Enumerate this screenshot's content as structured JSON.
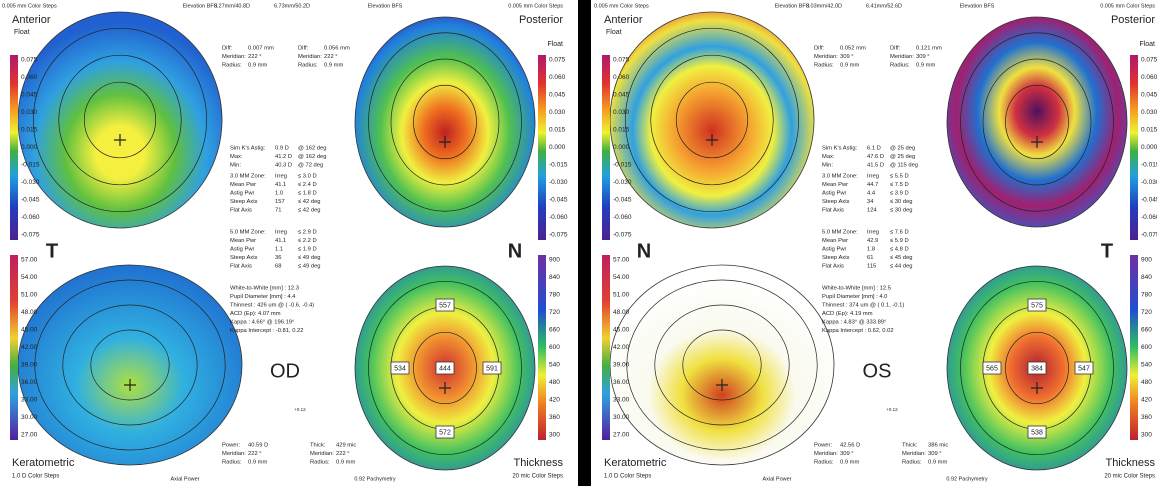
{
  "panels": [
    {
      "header": [
        "0.005 mm Color Steps",
        "Elevation BFS",
        "8.27mm/40.8D",
        "6.73mm/50.2D",
        "Elevation BFS",
        "0.005 mm Color Steps"
      ],
      "titles": {
        "anterior": "Anterior",
        "float_left": "Float",
        "posterior": "Posterior",
        "float_right": "Float",
        "keratometric": "Keratometric",
        "keratometric_steps": "1.0 D Color Steps",
        "axial": "Axial Power",
        "pachymetry": "0.92 Pachymetry",
        "thickness": "Thickness",
        "thickness_steps": "20 mic Color Steps",
        "offset": "+0.12"
      },
      "sides": [
        "T",
        "N"
      ],
      "eye": "OD",
      "elevation_scale": [
        "0.075",
        "0.060",
        "0.045",
        "0.030",
        "0.015",
        "0.000",
        "-0.015",
        "-0.030",
        "-0.045",
        "-0.060",
        "-0.075"
      ],
      "keratometric_scale": [
        "57.00",
        "54.00",
        "51.00",
        "48.00",
        "45.00",
        "42.00",
        "39.00",
        "36.00",
        "33.00",
        "30.00",
        "27.00"
      ],
      "thickness_scale": [
        "900",
        "840",
        "780",
        "720",
        "660",
        "600",
        "540",
        "480",
        "420",
        "360",
        "300"
      ],
      "diff_anterior": [
        [
          "Diff:",
          "0.007 mm"
        ],
        [
          "Meridian:",
          "222 °"
        ],
        [
          "Radius:",
          "0.9 mm"
        ]
      ],
      "diff_posterior": [
        [
          "Diff:",
          "0.056 mm"
        ],
        [
          "Meridian:",
          "222 °"
        ],
        [
          "Radius:",
          "0.9 mm"
        ]
      ],
      "sim_k": [
        [
          "Sim K's Astig:",
          "0.9 D",
          "@ 162 deg"
        ],
        [
          "Max:",
          "41.2 D",
          "@ 162 deg"
        ],
        [
          "Min:",
          "40.3 D",
          "@ 72 deg"
        ]
      ],
      "zone_3": [
        [
          "3.0 MM Zone:",
          "Irreg",
          "≤ 3.0 D"
        ],
        [
          "Mean Pwr",
          "41.1",
          "≤ 2.4 D"
        ],
        [
          "Astig Pwr",
          "1.0",
          "≤ 1.8 D"
        ],
        [
          "Steep Axis",
          "157",
          "≤ 42 deg"
        ],
        [
          "Flat Axis",
          "71",
          "≤ 42 deg"
        ]
      ],
      "zone_5": [
        [
          "5.0 MM Zone:",
          "Irreg",
          "≤ 2.9 D"
        ],
        [
          "Mean Pwr",
          "41.1",
          "≤ 2.2 D"
        ],
        [
          "Astig Pwr",
          "1.1",
          "≤ 1.9 D"
        ],
        [
          "Steep Axis",
          "36",
          "≤ 49 deg"
        ],
        [
          "Flat Axis",
          "68",
          "≤ 49 deg"
        ]
      ],
      "measurements": [
        "White-to-White [mm] : 12.3",
        "Pupil Diameter [mm] : 4.4",
        "Thinnest : 426 um @ ( -0.6, -0.4)",
        "ACD (Ep): 4.07 mm",
        "Kappa : 4.66° @ 196.19°",
        "Kappa Intercept : -0.81, 0.22"
      ],
      "thickness_points": [
        "557",
        "534",
        "444",
        "591",
        "572"
      ],
      "power": [
        [
          "Power:",
          "40.59 D"
        ],
        [
          "Meridian:",
          "222 °"
        ],
        [
          "Radius:",
          "0.9 mm"
        ]
      ],
      "thick": [
        [
          "Thick:",
          "429 mic"
        ],
        [
          "Meridian:",
          "222 °"
        ],
        [
          "Radius:",
          "0.9 mm"
        ]
      ]
    },
    {
      "header": [
        "0.005 mm Color Steps",
        "Elevation BFS",
        "8.03mm/42.0D",
        "6.41mm/52.6D",
        "Elevation BFS",
        "0.005 mm Color Steps"
      ],
      "titles": {
        "anterior": "Anterior",
        "float_left": "Float",
        "posterior": "Posterior",
        "float_right": "Float",
        "keratometric": "Keratometric",
        "keratometric_steps": "1.0 D Color Steps",
        "axial": "Axial Power",
        "pachymetry": "0.92 Pachymetry",
        "thickness": "Thickness",
        "thickness_steps": "20 mic Color Steps",
        "offset": "+0.12"
      },
      "sides": [
        "N",
        "T"
      ],
      "eye": "OS",
      "elevation_scale": [
        "0.075",
        "0.060",
        "0.045",
        "0.030",
        "0.015",
        "0.000",
        "-0.015",
        "-0.030",
        "-0.045",
        "-0.060",
        "-0.075"
      ],
      "keratometric_scale": [
        "57.00",
        "54.00",
        "51.00",
        "48.00",
        "45.00",
        "42.00",
        "39.00",
        "36.00",
        "33.00",
        "30.00",
        "27.00"
      ],
      "thickness_scale": [
        "900",
        "840",
        "780",
        "720",
        "660",
        "600",
        "540",
        "480",
        "420",
        "360",
        "300"
      ],
      "diff_anterior": [
        [
          "Diff:",
          "0.052 mm"
        ],
        [
          "Meridian:",
          "309 °"
        ],
        [
          "Radius:",
          "0.9 mm"
        ]
      ],
      "diff_posterior": [
        [
          "Diff:",
          "0.121 mm"
        ],
        [
          "Meridian:",
          "309 °"
        ],
        [
          "Radius:",
          "0.9 mm"
        ]
      ],
      "sim_k": [
        [
          "Sim K's Astig:",
          "6.1 D",
          "@ 25 deg"
        ],
        [
          "Max:",
          "47.6 D",
          "@ 25 deg"
        ],
        [
          "Min:",
          "41.5 D",
          "@ 115 deg"
        ]
      ],
      "zone_3": [
        [
          "3.0 MM Zone:",
          "Irreg",
          "≤ 5.5 D"
        ],
        [
          "Mean Pwr",
          "44.7",
          "≤ 7.5 D"
        ],
        [
          "Astig Pwr",
          "4.4",
          "≤ 3.9 D"
        ],
        [
          "Steep Axis",
          "34",
          "≤ 30 deg"
        ],
        [
          "Flat Axis",
          "124",
          "≤ 30 deg"
        ]
      ],
      "zone_5": [
        [
          "5.0 MM Zone:",
          "Irreg",
          "≤ 7.6 D"
        ],
        [
          "Mean Pwr",
          "42.9",
          "≤ 5.9 D"
        ],
        [
          "Astig Pwr",
          "1.8",
          "≤ 4.8 D"
        ],
        [
          "Steep Axis",
          "61",
          "≤ 45 deg"
        ],
        [
          "Flat Axis",
          "115",
          "≤ 44 deg"
        ]
      ],
      "measurements": [
        "White-to-White [mm] : 12.5",
        "Pupil Diameter [mm] : 4.0",
        "Thinnest : 374 um @ ( 0.1, -0.1)",
        "ACD (Ep): 4.19 mm",
        "Kappa : 4.83° @ 333.89°",
        "Kappa Intercept : 0.62, 0.02"
      ],
      "thickness_points": [
        "575",
        "565",
        "384",
        "547",
        "538"
      ],
      "power": [
        [
          "Power:",
          "42.56 D"
        ],
        [
          "Meridian:",
          "309 °"
        ],
        [
          "Radius:",
          "0.9 mm"
        ]
      ],
      "thick": [
        [
          "Thick:",
          "386 mic"
        ],
        [
          "Meridian:",
          "309 °"
        ],
        [
          "Radius:",
          "0.9 mm"
        ]
      ]
    }
  ]
}
